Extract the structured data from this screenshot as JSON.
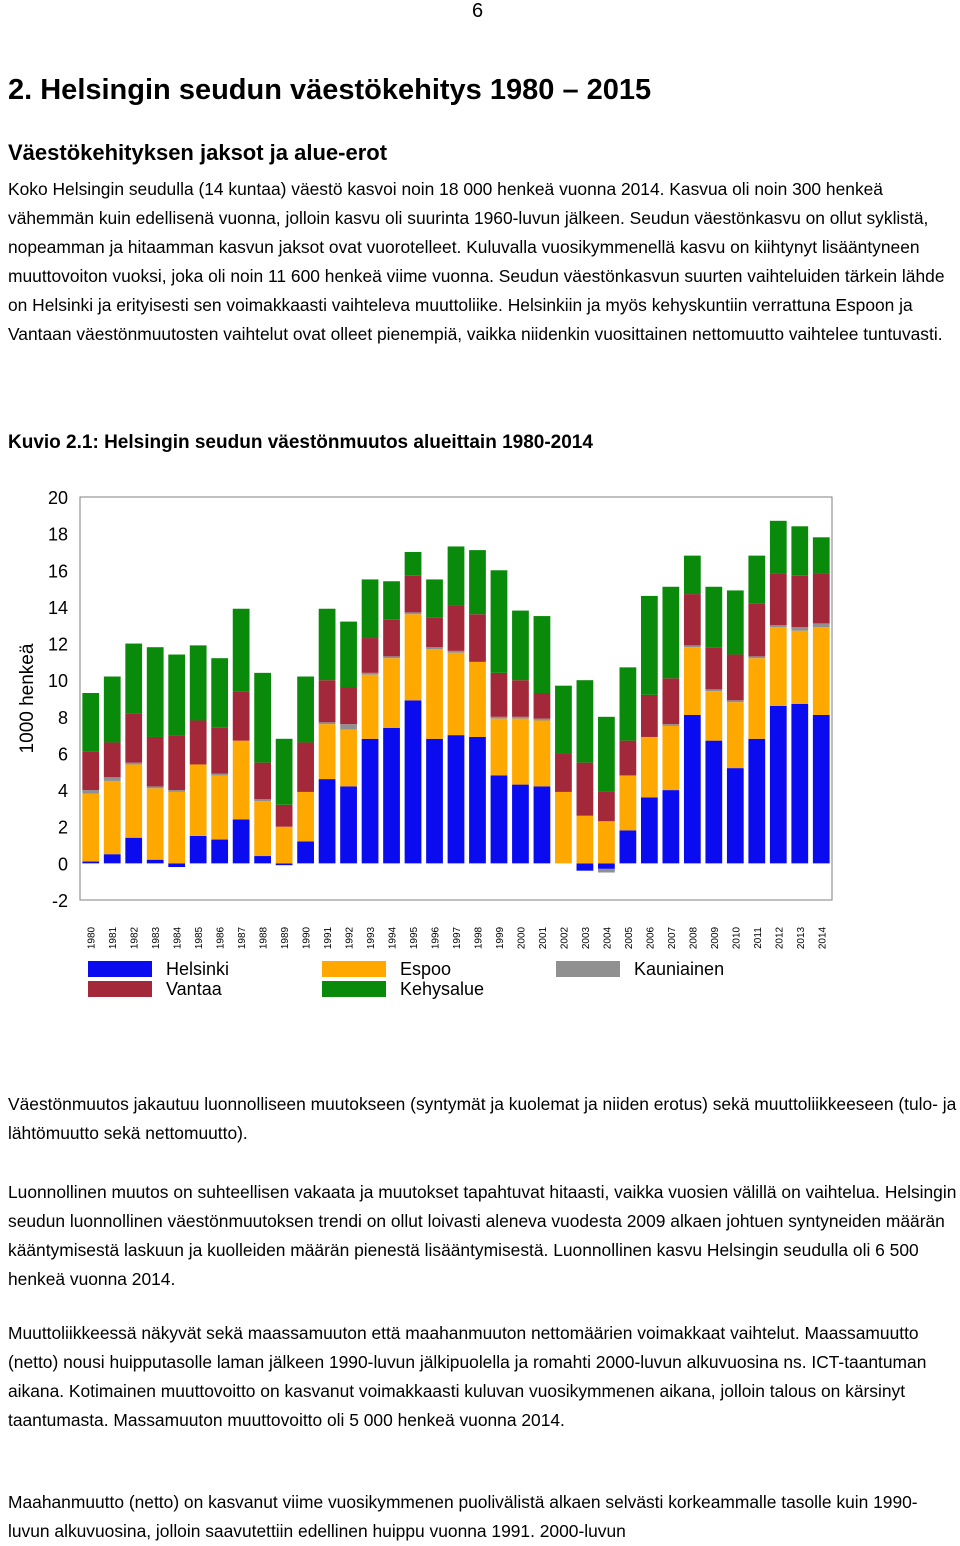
{
  "page_number": "6",
  "section_title": "2. Helsingin seudun väestökehitys 1980 – 2015",
  "subsection_title": "Väestökehityksen jaksot ja alue-erot",
  "paragraphs": {
    "intro": "Koko Helsingin seudulla (14 kuntaa) väestö kasvoi noin 18 000 henkeä vuonna 2014. Kasvua oli noin 300 henkeä vähemmän kuin edellisenä vuonna, jolloin kasvu oli suurinta 1960-luvun jälkeen. Seudun väestönkasvu on ollut syklistä, nopeamman ja hitaamman kasvun jaksot ovat vuorotelleet. Kuluvalla vuosikymmenellä kasvu on kiihtynyt lisääntyneen muuttovoiton vuoksi, joka oli noin 11 600 henkeä viime vuonna. Seudun väestönkasvun suurten vaihteluiden tärkein lähde on Helsinki ja erityisesti sen voimakkaasti vaihteleva muuttoliike. Helsinkiin ja myös kehyskuntiin verrattuna Espoon ja Vantaan väestönmuutosten vaihtelut ovat olleet pienempiä, vaikka niidenkin vuosittainen nettomuutto vaihtelee tuntuvasti.",
    "p2": "Väestönmuutos jakautuu luonnolliseen muutokseen (syntymät ja kuolemat ja niiden erotus) sekä muuttoliikkeeseen (tulo- ja lähtömuutto sekä nettomuutto).",
    "p3": "Luonnollinen muutos on suhteellisen vakaata ja muutokset tapahtuvat hitaasti, vaikka vuosien välillä on vaihtelua. Helsingin seudun luonnollinen väestönmuutoksen trendi on ollut loivasti aleneva vuodesta 2009 alkaen johtuen syntyneiden määrän kääntymisestä laskuun ja kuolleiden määrän pienestä lisääntymisestä. Luonnollinen kasvu Helsingin seudulla oli 6 500 henkeä vuonna 2014.",
    "p4": "Muuttoliikkeessä näkyvät sekä maassamuuton että maahanmuuton nettomäärien voimakkaat vaihtelut. Maassamuutto (netto) nousi huipputasolle laman jälkeen 1990-luvun jälkipuolella ja romahti 2000-luvun alkuvuosina ns. ICT-taantuman aikana. Kotimainen muuttovoitto on kasvanut voimakkaasti kuluvan vuosikymmenen aikana, jolloin talous on kärsinyt taantumasta. Massamuuton muuttovoitto oli 5 000 henkeä vuonna 2014.",
    "p5": "Maahanmuutto (netto) on kasvanut viime vuosikymmenen puolivälistä alkaen selvästi korkeammalle tasolle kuin 1990-luvun alkuvuosina, jolloin saavutettiin edellinen huippu vuonna 1991. 2000-luvun"
  },
  "figure_title": "Kuvio 2.1: Helsingin seudun väestönmuutos alueittain 1980-2014",
  "legend": [
    {
      "label": "Helsinki",
      "color": "#0b0bf0"
    },
    {
      "label": "Espoo",
      "color": "#ffa800"
    },
    {
      "label": "Kauniainen",
      "color": "#909090"
    },
    {
      "label": "Vantaa",
      "color": "#a3283a"
    },
    {
      "label": "Kehysalue",
      "color": "#0a8a0a"
    }
  ],
  "chart_data": {
    "type": "bar",
    "stacked": true,
    "ylabel": "1000 henkeä",
    "ylim": [
      -2,
      20
    ],
    "yticks": [
      20,
      18,
      16,
      14,
      12,
      10,
      8,
      6,
      4,
      2,
      0,
      -2
    ],
    "categories": [
      "1980",
      "1981",
      "1982",
      "1983",
      "1984",
      "1985",
      "1986",
      "1987",
      "1988",
      "1989",
      "1990",
      "1991",
      "1992",
      "1993",
      "1994",
      "1995",
      "1996",
      "1997",
      "1998",
      "1999",
      "2000",
      "2001",
      "2002",
      "2003",
      "2004",
      "2005",
      "2006",
      "2007",
      "2008",
      "2009",
      "2010",
      "2011",
      "2012",
      "2013",
      "2014"
    ],
    "series": [
      {
        "name": "Helsinki",
        "color": "#0b0bf0",
        "values": [
          0.1,
          0.5,
          1.4,
          0.2,
          -0.2,
          1.5,
          1.3,
          2.4,
          0.4,
          -0.1,
          1.2,
          4.6,
          4.2,
          6.8,
          7.4,
          8.9,
          6.8,
          7.0,
          6.9,
          4.8,
          4.3,
          4.2,
          0,
          -0.4,
          -0.3,
          1.8,
          3.6,
          4.0,
          8.1,
          6.7,
          5.2,
          6.8,
          8.6,
          8.7,
          8.1
        ]
      },
      {
        "name": "Espoo",
        "color": "#ffa800",
        "values": [
          3.7,
          4.0,
          4.0,
          3.9,
          3.9,
          3.9,
          3.5,
          4.3,
          3.0,
          2.0,
          2.7,
          3.0,
          3.1,
          3.5,
          3.8,
          4.7,
          4.9,
          4.5,
          4.1,
          3.1,
          3.6,
          3.6,
          3.9,
          2.6,
          2.3,
          3.0,
          3.3,
          3.5,
          3.7,
          2.7,
          3.6,
          4.4,
          4.3,
          4.0,
          4.8
        ]
      },
      {
        "name": "Kauniainen",
        "color": "#909090",
        "values": [
          0.2,
          0.2,
          0.1,
          0.1,
          0.1,
          0.0,
          0.1,
          0.0,
          0.1,
          0.0,
          0.0,
          0.1,
          0.3,
          0.1,
          0.1,
          0.1,
          0.1,
          0.1,
          0.0,
          0.1,
          0.1,
          0.1,
          0.0,
          0.0,
          -0.2,
          0.0,
          0.0,
          0.1,
          0.1,
          0.1,
          0.1,
          0.1,
          0.1,
          0.2,
          0.2
        ]
      },
      {
        "name": "Vantaa",
        "color": "#a3283a",
        "values": [
          2.1,
          1.9,
          2.7,
          2.7,
          3.0,
          2.4,
          2.5,
          2.7,
          2.0,
          1.2,
          2.7,
          2.3,
          2.0,
          1.9,
          2.0,
          2.0,
          1.6,
          2.5,
          2.6,
          2.4,
          2.0,
          1.4,
          2.1,
          2.9,
          1.6,
          1.9,
          2.3,
          2.5,
          2.8,
          2.3,
          2.5,
          2.9,
          2.8,
          2.8,
          2.7
        ]
      },
      {
        "name": "Kehysalue",
        "color": "#0a8a0a",
        "values": [
          3.2,
          3.6,
          3.8,
          4.9,
          4.4,
          4.1,
          3.8,
          4.5,
          4.9,
          3.6,
          3.6,
          3.9,
          3.6,
          3.2,
          2.1,
          1.3,
          2.1,
          3.2,
          3.5,
          5.6,
          3.8,
          4.2,
          3.7,
          4.5,
          4.1,
          4.0,
          5.4,
          5.0,
          2.1,
          3.3,
          3.5,
          2.6,
          2.9,
          2.7,
          2.0
        ]
      }
    ]
  }
}
